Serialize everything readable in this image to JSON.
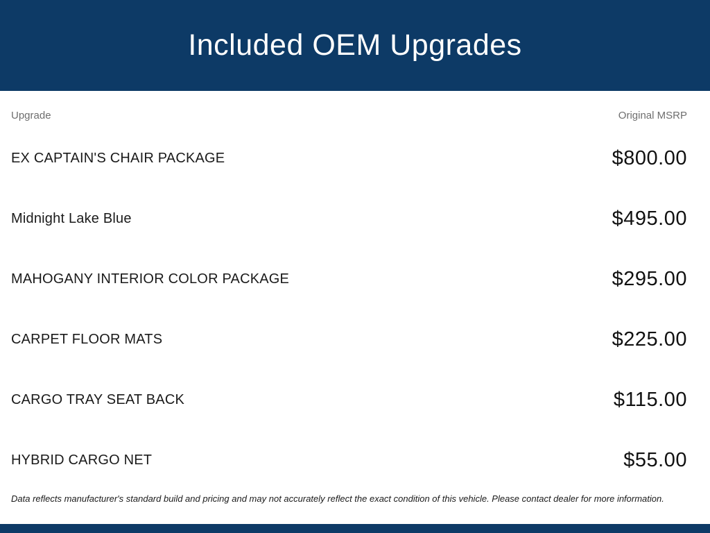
{
  "banner": {
    "title": "Included OEM Upgrades",
    "background_color": "#0d3a66",
    "text_color": "#ffffff"
  },
  "table": {
    "headers": {
      "upgrade": "Upgrade",
      "msrp": "Original MSRP"
    },
    "rows": [
      {
        "name": "EX CAPTAIN'S CHAIR PACKAGE",
        "msrp": "$800.00"
      },
      {
        "name": "Midnight Lake Blue",
        "msrp": "$495.00"
      },
      {
        "name": "MAHOGANY INTERIOR COLOR PACKAGE",
        "msrp": "$295.00"
      },
      {
        "name": "CARPET FLOOR MATS",
        "msrp": "$225.00"
      },
      {
        "name": "CARGO TRAY SEAT BACK",
        "msrp": "$115.00"
      },
      {
        "name": "HYBRID CARGO NET",
        "msrp": "$55.00"
      }
    ]
  },
  "disclaimer": "Data reflects manufacturer's standard build and pricing and may not accurately reflect the exact condition of this vehicle. Please contact dealer for more information.",
  "colors": {
    "accent_navy": "#0d3a66",
    "column_header_gray": "#6e6e6e",
    "row_text": "#1a1a1a"
  }
}
